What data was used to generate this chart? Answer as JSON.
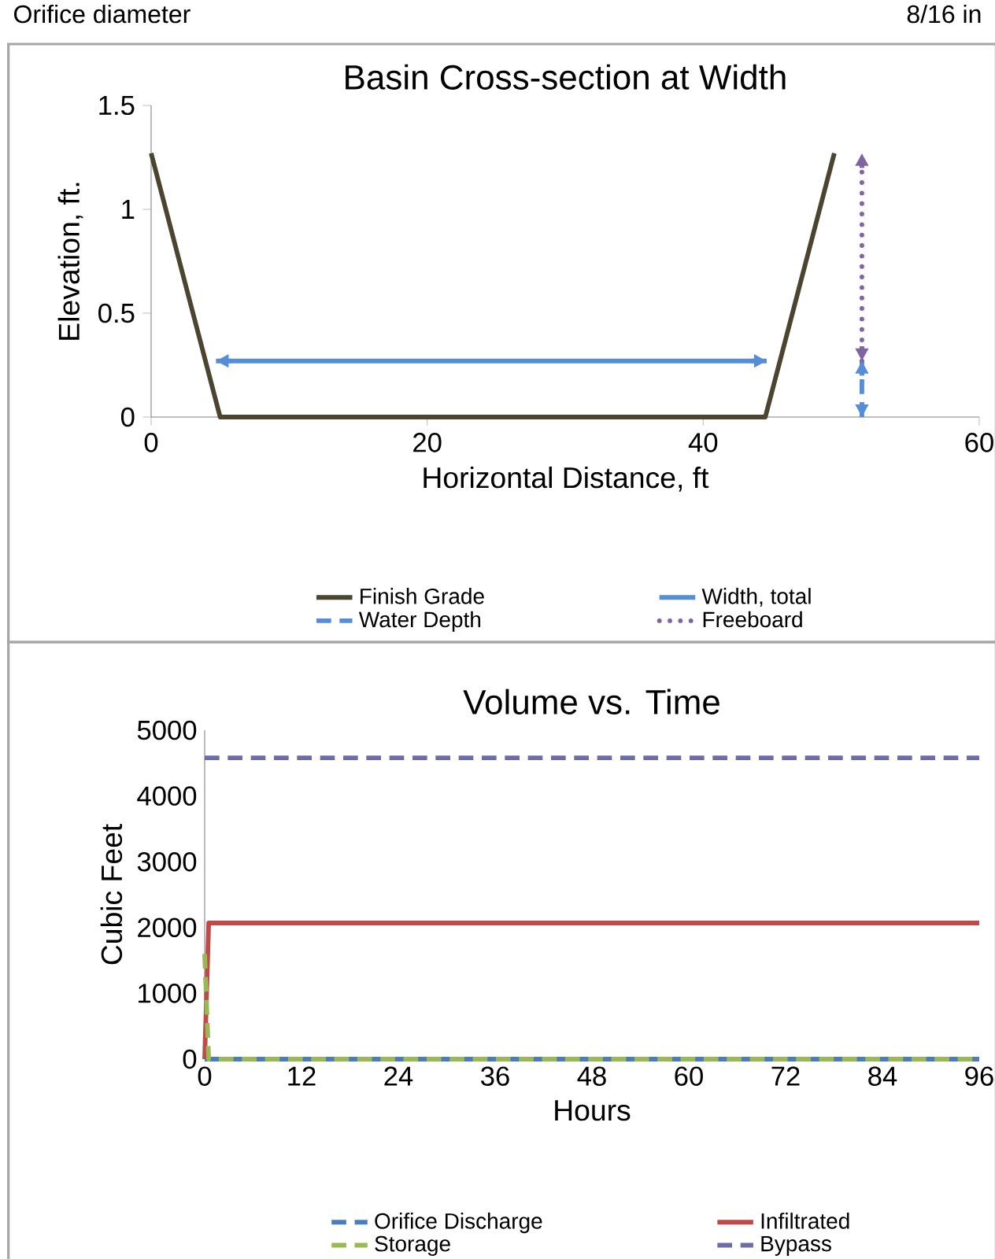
{
  "chart_data": [
    {
      "type": "line",
      "title": "Basin Cross-section at Width",
      "xlabel": "Horizontal Distance, ft",
      "ylabel": "Elevation, ft.",
      "annotations": [
        "Orifice diameter",
        "8/16 in"
      ],
      "xlim": [
        0,
        60
      ],
      "ylim": [
        0,
        1.5
      ],
      "xticks": [
        0,
        20,
        40,
        60
      ],
      "yticks": [
        0,
        0.5,
        1,
        1.5
      ],
      "legend": "bottom",
      "series": [
        {
          "name": "Finish Grade",
          "color": "#4a4430",
          "line_style": "solid",
          "x": [
            0,
            5,
            44.5,
            49.5
          ],
          "values": [
            1.27,
            0,
            0,
            1.27
          ]
        },
        {
          "name": "Width, total",
          "color": "#558ed5",
          "line_style": "solid",
          "x": [
            4.7,
            44.6
          ],
          "values": [
            0.27,
            0.27
          ]
        },
        {
          "name": "Water Depth",
          "color": "#558ed5",
          "line_style": "dashed",
          "x": [
            51.5,
            51.5
          ],
          "values": [
            0,
            0.27
          ]
        },
        {
          "name": "Freeboard",
          "color": "#8064a2",
          "line_style": "dotted",
          "x": [
            51.5,
            51.5
          ],
          "values": [
            0.27,
            1.27
          ]
        }
      ]
    },
    {
      "type": "line",
      "title": "Volume vs. Time",
      "xlabel": "Hours",
      "ylabel": "Cubic Feet",
      "xlim": [
        0,
        96
      ],
      "ylim": [
        0,
        5000
      ],
      "xticks": [
        0,
        12,
        24,
        36,
        48,
        60,
        72,
        84,
        96
      ],
      "yticks": [
        0,
        1000,
        2000,
        3000,
        4000,
        5000
      ],
      "legend": "bottom",
      "series": [
        {
          "name": "Orifice Discharge",
          "color": "#4a7ebb",
          "line_style": "dashed",
          "x": [
            0,
            96
          ],
          "values": [
            0,
            0
          ]
        },
        {
          "name": "Infiltrated",
          "color": "#be4b48",
          "line_style": "solid",
          "x": [
            0,
            0.5,
            96
          ],
          "values": [
            0,
            2070,
            2070
          ]
        },
        {
          "name": "Storage",
          "color": "#98b954",
          "line_style": "dashed",
          "x": [
            0,
            0.5,
            96
          ],
          "values": [
            1600,
            0,
            0
          ]
        },
        {
          "name": "Bypass",
          "color": "#6d6ca8",
          "line_style": "dashed",
          "x": [
            0,
            96
          ],
          "values": [
            4580,
            4580
          ]
        }
      ]
    }
  ]
}
